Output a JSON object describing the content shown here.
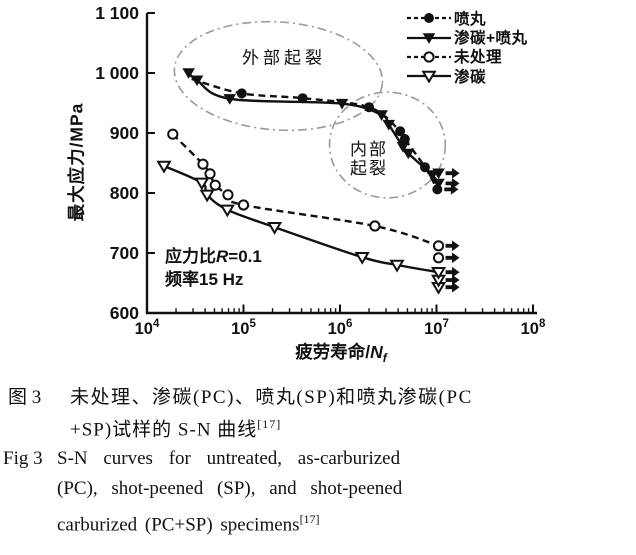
{
  "meta": {
    "background": "#ffffff",
    "ink": "#111111",
    "ellipse_color": "#9a9a9a"
  },
  "chart_data": {
    "type": "line",
    "xscale": "log",
    "xlim": [
      10000,
      100000000
    ],
    "ylim": [
      600,
      1100
    ],
    "grid": false,
    "legend_position": "top-right",
    "ylabel": "最大应力/MPa",
    "xlabel": {
      "prefix": "疲劳寿命/",
      "var": "N",
      "sub": "f"
    },
    "yticks": [
      600,
      700,
      800,
      900,
      1000,
      1100
    ],
    "ytick_labels": [
      "600",
      "700",
      "800",
      "900",
      "1 000",
      "1 100"
    ],
    "xtick_base": "10",
    "xtick_exponents": [
      4,
      5,
      6,
      7,
      8
    ],
    "series": [
      {
        "id": "sp",
        "label": "喷丸",
        "marker": "circle-filled",
        "line_style": "dashed",
        "curve_prepend": [
          [
            29000,
            990
          ]
        ],
        "points": [
          [
            96000,
            966
          ],
          [
            410000,
            958
          ],
          [
            2000000,
            943
          ],
          [
            4200000,
            903
          ],
          [
            4700000,
            890
          ],
          [
            7600000,
            843
          ]
        ],
        "runouts": [
          [
            10200000,
            806
          ]
        ]
      },
      {
        "id": "pc-sp",
        "label": "渗碳+喷丸",
        "marker": "triangle-filled",
        "line_style": "solid",
        "curve_prepend": [],
        "points": [
          [
            27000,
            1000
          ],
          [
            33000,
            988
          ],
          [
            72000,
            957
          ],
          [
            1050000,
            949
          ],
          [
            2700000,
            930
          ],
          [
            3200000,
            914
          ],
          [
            4500000,
            877
          ],
          [
            5100000,
            866
          ],
          [
            9000000,
            830
          ]
        ],
        "runouts": [
          [
            10500000,
            833
          ],
          [
            10500000,
            816
          ]
        ]
      },
      {
        "id": "untreated",
        "label": "未处理",
        "marker": "circle-open",
        "line_style": "dashed",
        "curve_prepend": [],
        "points": [
          [
            18500,
            898
          ],
          [
            38000,
            848
          ],
          [
            45000,
            832
          ],
          [
            51000,
            813
          ],
          [
            69000,
            797
          ],
          [
            100000,
            780
          ],
          [
            2300000,
            745
          ]
        ],
        "runouts": [
          [
            10500000,
            692
          ],
          [
            10500000,
            712
          ]
        ]
      },
      {
        "id": "pc",
        "label": "渗碳",
        "marker": "triangle-open",
        "line_style": "solid",
        "curve_prepend": [],
        "points": [
          [
            15000,
            845
          ],
          [
            37000,
            817
          ],
          [
            42000,
            797
          ],
          [
            68000,
            772
          ],
          [
            210000,
            743
          ],
          [
            1700000,
            693
          ],
          [
            3900000,
            680
          ]
        ],
        "runouts": [
          [
            10500000,
            643
          ],
          [
            10500000,
            655
          ],
          [
            10500000,
            668
          ]
        ]
      }
    ],
    "ellipses": [
      {
        "id": "external-initiation",
        "cx": 230000,
        "cy": 995,
        "rx_decades": 1.08,
        "ry_mpa": 90,
        "rotation_deg": 4
      },
      {
        "id": "internal-initiation",
        "cx": 3100000,
        "cy": 880,
        "rx_decades": 0.6,
        "ry_mpa": 88,
        "rotation_deg": 0
      }
    ],
    "annotations": {
      "external": {
        "text": "外部起裂"
      },
      "internal": {
        "line1": "内部",
        "line2": "起裂"
      },
      "note": {
        "l1_pre": "应力比",
        "l1_var": "R",
        "l1_post": "=0.1",
        "l2": "频率15 Hz"
      }
    }
  },
  "caption_cn": {
    "label": "图 3",
    "line1": "未处理、渗碳(PC)、喷丸(SP)和喷丸渗碳(PC",
    "line2": "+SP)试样的 S-N 曲线",
    "ref": "[17]"
  },
  "caption_en": {
    "label": "Fig 3",
    "line1": "S-N curves for untreated, as-carburized",
    "line2": "(PC), shot-peened (SP), and shot-peened",
    "line3": "carburized (PC+SP) specimens",
    "ref": "[17]"
  }
}
